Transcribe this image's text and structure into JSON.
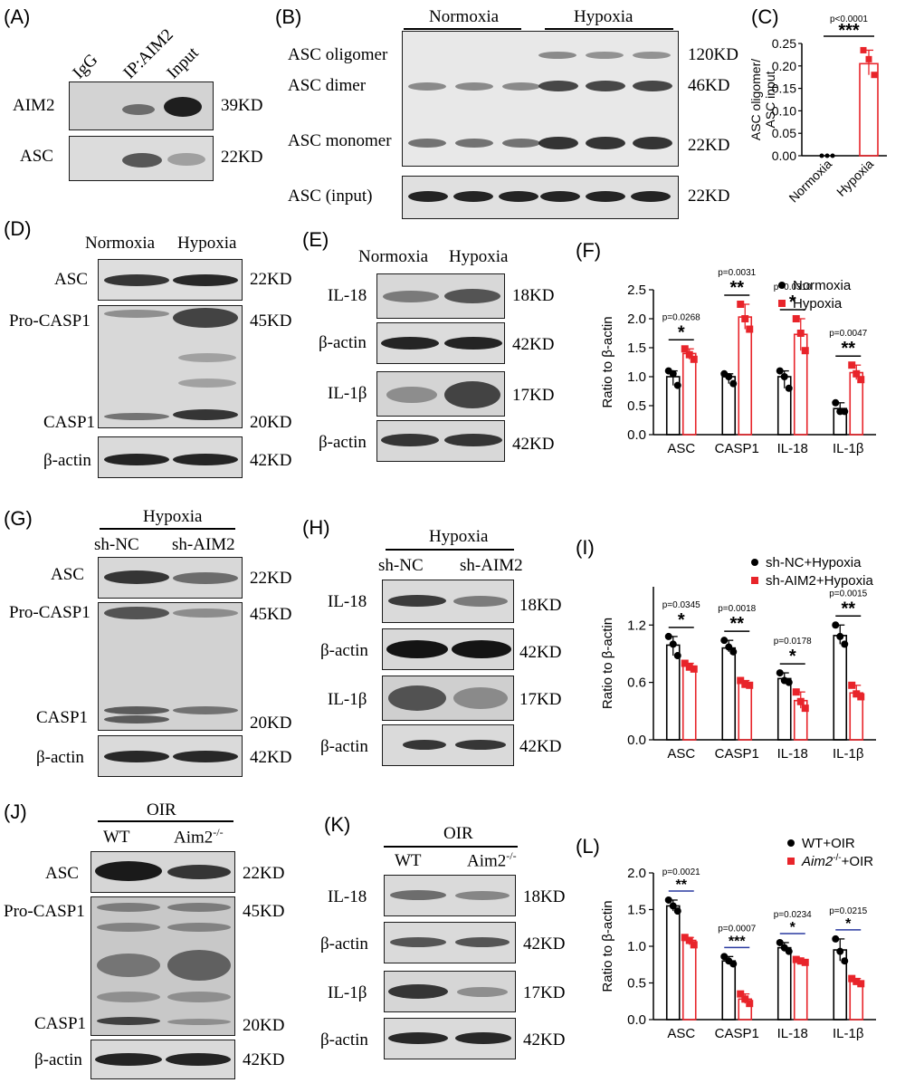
{
  "panels": {
    "A": {
      "label": "(A)",
      "lanes": [
        "IgG",
        "IP:AIM2",
        "Input"
      ],
      "rows": [
        {
          "name": "AIM2",
          "kd": "39KD"
        },
        {
          "name": "ASC",
          "kd": "22KD"
        }
      ]
    },
    "B": {
      "label": "(B)",
      "groups": [
        "Normoxia",
        "Hypoxia"
      ],
      "rows": [
        {
          "name": "ASC oligomer",
          "kd": "120KD"
        },
        {
          "name": "ASC dimer",
          "kd": "46KD"
        },
        {
          "name": "ASC monomer",
          "kd": "22KD"
        },
        {
          "name": "ASC (input)",
          "kd": "22KD"
        }
      ]
    },
    "C": {
      "label": "(C)",
      "ylabel_line1": "ASC oligomer/",
      "ylabel_line2": "ASC input",
      "p_value": "p<0.0001",
      "stars": "***"
    },
    "D": {
      "label": "(D)",
      "groups": [
        "Normoxia",
        "Hypoxia"
      ],
      "rows": [
        {
          "name": "ASC",
          "kd": "22KD"
        },
        {
          "name": "Pro-CASP1",
          "kd": "45KD"
        },
        {
          "name": "CASP1",
          "kd": "20KD"
        },
        {
          "name": "β-actin",
          "kd": "42KD"
        }
      ]
    },
    "E": {
      "label": "(E)",
      "groups": [
        "Normoxia",
        "Hypoxia"
      ],
      "rows": [
        {
          "name": "IL-18",
          "kd": "18KD"
        },
        {
          "name": "β-actin",
          "kd": "42KD"
        },
        {
          "name": "IL-1β",
          "kd": "17KD"
        },
        {
          "name": "β-actin",
          "kd": "42KD"
        }
      ]
    },
    "F": {
      "label": "(F)",
      "ylabel": "Ratio to β-actin"
    },
    "G": {
      "label": "(G)",
      "condition": "Hypoxia",
      "groups": [
        "sh-NC",
        "sh-AIM2"
      ],
      "rows": [
        {
          "name": "ASC",
          "kd": "22KD"
        },
        {
          "name": "Pro-CASP1",
          "kd": "45KD"
        },
        {
          "name": "CASP1",
          "kd": "20KD"
        },
        {
          "name": "β-actin",
          "kd": "42KD"
        }
      ]
    },
    "H": {
      "label": "(H)",
      "condition": "Hypoxia",
      "groups": [
        "sh-NC",
        "sh-AIM2"
      ],
      "rows": [
        {
          "name": "IL-18",
          "kd": "18KD"
        },
        {
          "name": "β-actin",
          "kd": "42KD"
        },
        {
          "name": "IL-1β",
          "kd": "17KD"
        },
        {
          "name": "β-actin",
          "kd": "42KD"
        }
      ]
    },
    "I": {
      "label": "(I)",
      "ylabel": "Ratio to β-actin"
    },
    "J": {
      "label": "(J)",
      "condition": "OIR",
      "groups": [
        "WT",
        "Aim2"
      ],
      "group_sup": "-/-",
      "rows": [
        {
          "name": "ASC",
          "kd": "22KD"
        },
        {
          "name": "Pro-CASP1",
          "kd": "45KD"
        },
        {
          "name": "CASP1",
          "kd": "20KD"
        },
        {
          "name": "β-actin",
          "kd": "42KD"
        }
      ]
    },
    "K": {
      "label": "(K)",
      "condition": "OIR",
      "groups": [
        "WT",
        "Aim2"
      ],
      "group_sup": "-/-",
      "rows": [
        {
          "name": "IL-18",
          "kd": "18KD"
        },
        {
          "name": "β-actin",
          "kd": "42KD"
        },
        {
          "name": "IL-1β",
          "kd": "17KD"
        },
        {
          "name": "β-actin",
          "kd": "42KD"
        }
      ]
    },
    "L": {
      "label": "(L)",
      "ylabel": "Ratio to β-actin"
    }
  },
  "colors": {
    "control": "#000000",
    "treatment": "#e8242a",
    "comparison_line_L": "#2a3aa0"
  },
  "chart_data": [
    {
      "id": "C",
      "type": "bar",
      "categories": [
        "Normoxia",
        "Hypoxia"
      ],
      "values": [
        0.0,
        0.205
      ],
      "points": [
        [
          0.0,
          0.0,
          0.0
        ],
        [
          0.235,
          0.215,
          0.18
        ]
      ],
      "ylim": [
        0,
        0.25
      ],
      "yticks": [
        "0.00",
        "0.05",
        "0.10",
        "0.15",
        "0.20",
        "0.25"
      ],
      "ylabel": "ASC oligomer/ ASC input"
    },
    {
      "id": "F",
      "type": "bar",
      "categories": [
        "ASC",
        "CASP1",
        "IL-18",
        "IL-1β"
      ],
      "series": [
        {
          "name": "Normoxia",
          "values": [
            1.0,
            1.0,
            1.0,
            0.45
          ],
          "points": [
            [
              1.1,
              1.05,
              0.85
            ],
            [
              1.05,
              1.0,
              0.88
            ],
            [
              1.1,
              1.0,
              0.8
            ],
            [
              0.55,
              0.4,
              0.4
            ]
          ]
        },
        {
          "name": "Hypoxia",
          "values": [
            1.4,
            2.03,
            1.73,
            1.07
          ],
          "points": [
            [
              1.48,
              1.38,
              1.3
            ],
            [
              2.25,
              2.0,
              1.82
            ],
            [
              2.0,
              1.75,
              1.45
            ],
            [
              1.2,
              1.05,
              0.95
            ]
          ]
        }
      ],
      "ylim": [
        0,
        2.5
      ],
      "yticks": [
        "0.0",
        "0.5",
        "1.0",
        "1.5",
        "2.0",
        "2.5"
      ],
      "ylabel": "Ratio to β-actin",
      "p_values": [
        "p=0.0268",
        "p=0.0031",
        "p=0.0310",
        "p=0.0047"
      ],
      "stars": [
        "*",
        "**",
        "*",
        "**"
      ],
      "legend": "top-right"
    },
    {
      "id": "I",
      "type": "bar",
      "categories": [
        "ASC",
        "CASP1",
        "IL-18",
        "IL-1β"
      ],
      "series": [
        {
          "name": "sh-NC+Hypoxia",
          "values": [
            0.99,
            0.96,
            0.64,
            1.09
          ],
          "points": [
            [
              1.08,
              1.0,
              0.88
            ],
            [
              1.04,
              0.97,
              0.92
            ],
            [
              0.7,
              0.62,
              0.6
            ],
            [
              1.2,
              1.08,
              1.0
            ]
          ]
        },
        {
          "name": "sh-AIM2+Hypoxia",
          "values": [
            0.77,
            0.59,
            0.41,
            0.49
          ],
          "points": [
            [
              0.8,
              0.76,
              0.74
            ],
            [
              0.62,
              0.58,
              0.57
            ],
            [
              0.5,
              0.4,
              0.33
            ],
            [
              0.57,
              0.48,
              0.45
            ]
          ]
        }
      ],
      "ylim": [
        0,
        1.6
      ],
      "yticks": [
        "0.0",
        "0.6",
        "1.2"
      ],
      "ylabel": "Ratio to β-actin",
      "p_values": [
        "p=0.0345",
        "p=0.0018",
        "p=0.0178",
        "p=0.0015"
      ],
      "stars": [
        "*",
        "**",
        "*",
        "**"
      ],
      "legend": "top-right"
    },
    {
      "id": "L",
      "type": "bar",
      "categories": [
        "ASC",
        "CASP1",
        "IL-18",
        "IL-1β"
      ],
      "series": [
        {
          "name": "WT+OIR",
          "values": [
            1.55,
            0.8,
            0.98,
            0.95
          ],
          "points": [
            [
              1.63,
              1.55,
              1.48
            ],
            [
              0.86,
              0.8,
              0.76
            ],
            [
              1.05,
              0.98,
              0.93
            ],
            [
              1.1,
              0.93,
              0.8
            ]
          ]
        },
        {
          "name": "+OIR",
          "name_italic": "Aim2",
          "name_sup": "-/-",
          "values": [
            1.08,
            0.28,
            0.8,
            0.52
          ],
          "points": [
            [
              1.12,
              1.08,
              1.02
            ],
            [
              0.35,
              0.28,
              0.22
            ],
            [
              0.82,
              0.8,
              0.78
            ],
            [
              0.56,
              0.52,
              0.49
            ]
          ]
        }
      ],
      "ylim": [
        0,
        2.0
      ],
      "yticks": [
        "0.0",
        "0.5",
        "1.0",
        "1.5",
        "2.0"
      ],
      "ylabel": "Ratio to β-actin",
      "p_values": [
        "p=0.0021",
        "p=0.0007",
        "p=0.0234",
        "p=0.0215"
      ],
      "stars": [
        "**",
        "***",
        "*",
        "*"
      ],
      "legend": "top-right"
    }
  ]
}
